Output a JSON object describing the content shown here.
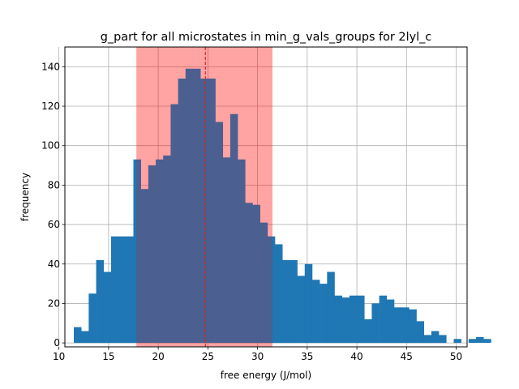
{
  "chart_data": {
    "type": "bar",
    "title": "g_part for all microstates in min_g_vals_groups for 2lyl_c",
    "xlabel": "free energy (J/mol)",
    "ylabel": "frequency",
    "xlim": [
      10.6,
      51.1
    ],
    "ylim": [
      -2,
      150
    ],
    "xticks": [
      10,
      15,
      20,
      25,
      30,
      35,
      40,
      45,
      50
    ],
    "yticks": [
      0,
      20,
      40,
      60,
      80,
      100,
      120,
      140
    ],
    "grid": true,
    "bin_start": 11.5,
    "bin_width": 0.75,
    "values": [
      8,
      6,
      25,
      42,
      36,
      54,
      54,
      54,
      93,
      78,
      90,
      93,
      95,
      121,
      134,
      139,
      139,
      134,
      134,
      112,
      94,
      116,
      93,
      71,
      70,
      61,
      54,
      50,
      42,
      42,
      34,
      40,
      32,
      30,
      36,
      24,
      23,
      24,
      24,
      12,
      20,
      24,
      22,
      18,
      18,
      17,
      11,
      4,
      6,
      4,
      0,
      2,
      0,
      2,
      3,
      2
    ],
    "bar_color": "#1f77b4",
    "shaded_band": {
      "x_start": 17.8,
      "x_end": 31.5,
      "color": "#ff0000",
      "opacity": 0.2
    },
    "vline": {
      "x": 24.75,
      "color": "#d62728",
      "style": "dashed"
    }
  }
}
